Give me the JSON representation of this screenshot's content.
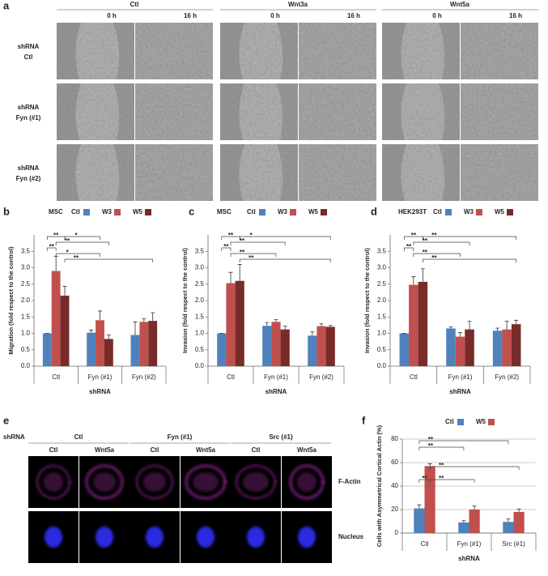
{
  "panel_labels": [
    "a",
    "b",
    "c",
    "d",
    "e",
    "f"
  ],
  "panel_a": {
    "groups": [
      "Ctl",
      "Wnt3a",
      "Wnt5a"
    ],
    "times": [
      "0 h",
      "16 h"
    ],
    "rows": [
      [
        "shRNA",
        "Ctl"
      ],
      [
        "shRNA",
        "Fyn (#1)"
      ],
      [
        "shRNA",
        "Fyn (#2)"
      ]
    ]
  },
  "panel_e": {
    "row_header": "shRNA",
    "groups": [
      "Ctl",
      "Fyn (#1)",
      "Src (#1)"
    ],
    "conditions": [
      "Ctl",
      "Wnt5a"
    ],
    "channels": [
      "F-Actin",
      "Nucleus"
    ]
  },
  "chart_data": [
    {
      "type": "bar",
      "title": "MSC",
      "ylabel": "Migration (fold respect to the control)",
      "xlabel": "shRNA",
      "categories": [
        "Ctl",
        "Fyn (#1)",
        "Fyn (#2)"
      ],
      "series": [
        {
          "name": "Ctl",
          "color": "#4f81bd",
          "values": [
            1,
            1.02,
            0.95
          ],
          "errors": [
            0,
            0.08,
            0.4
          ]
        },
        {
          "name": "W3",
          "color": "#c0504d",
          "values": [
            2.9,
            1.4,
            1.35
          ],
          "errors": [
            0.45,
            0.28,
            0.1
          ]
        },
        {
          "name": "W5",
          "color": "#772c2a",
          "values": [
            2.15,
            0.83,
            1.38
          ],
          "errors": [
            0.28,
            0.12,
            0.25
          ]
        }
      ],
      "ylim": [
        0,
        4
      ],
      "yticks": [
        {
          "value": 0,
          "label": "0.0"
        },
        0.5,
        {
          "value": 1,
          "label": "1.0"
        },
        1.5,
        {
          "value": 2,
          "label": "2.0"
        },
        2.5,
        {
          "value": 3,
          "label": "3.0"
        },
        3.5
      ],
      "grid": false,
      "significance": [
        "**",
        "*",
        "**",
        "**",
        "*",
        "**"
      ]
    },
    {
      "type": "bar",
      "title": "MSC",
      "ylabel": "Invasion (fold respect to the control)",
      "xlabel": "shRNA",
      "categories": [
        "Ctl",
        "Fyn (#1)",
        "Fyn (#2)"
      ],
      "series": [
        {
          "name": "Ctl",
          "color": "#4f81bd",
          "values": [
            1,
            1.23,
            0.93
          ],
          "errors": [
            0,
            0.1,
            0.12
          ]
        },
        {
          "name": "W3",
          "color": "#c0504d",
          "values": [
            2.53,
            1.35,
            1.22
          ],
          "errors": [
            0.33,
            0.07,
            0.07
          ]
        },
        {
          "name": "W5",
          "color": "#772c2a",
          "values": [
            2.6,
            1.12,
            1.2
          ],
          "errors": [
            0.5,
            0.1,
            0.04
          ]
        }
      ],
      "ylim": [
        0,
        4
      ],
      "yticks": [
        {
          "value": 0,
          "label": "0.0"
        },
        0.5,
        {
          "value": 1,
          "label": "1.0"
        },
        1.5,
        {
          "value": 2,
          "label": "2.0"
        },
        2.5,
        {
          "value": 3,
          "label": "3.0"
        },
        3.5
      ],
      "grid": false,
      "significance": [
        "**",
        "*",
        "**",
        "**",
        "**",
        "**"
      ]
    },
    {
      "type": "bar",
      "title": "HEK293T",
      "ylabel": "Invasion (fold respect to the control)",
      "xlabel": "shRNA",
      "categories": [
        "Ctl",
        "Fyn (#1)",
        "Fyn (#2)"
      ],
      "series": [
        {
          "name": "Ctl",
          "color": "#4f81bd",
          "values": [
            1,
            1.15,
            1.08
          ],
          "errors": [
            0,
            0.05,
            0.08
          ]
        },
        {
          "name": "W3",
          "color": "#c0504d",
          "values": [
            2.48,
            0.9,
            1.12
          ],
          "errors": [
            0.25,
            0.12,
            0.25
          ]
        },
        {
          "name": "W5",
          "color": "#772c2a",
          "values": [
            2.57,
            1.12,
            1.28
          ],
          "errors": [
            0.4,
            0.25,
            0.12
          ]
        }
      ],
      "ylim": [
        0,
        4
      ],
      "yticks": [
        {
          "value": 0,
          "label": "0.0"
        },
        0.5,
        {
          "value": 1,
          "label": "1.0"
        },
        1.5,
        {
          "value": 2,
          "label": "2.0"
        },
        2.5,
        {
          "value": 3,
          "label": "3.0"
        },
        3.5
      ],
      "grid": false,
      "significance": [
        "**",
        "**",
        "**",
        "**",
        "**",
        "**"
      ]
    },
    {
      "type": "bar",
      "ylabel": "Cells with Asymmetrical Cortical Actin (%)",
      "xlabel": "shRNA",
      "categories": [
        "Ctl",
        "Fyn (#1)",
        "Src (#1)"
      ],
      "series": [
        {
          "name": "Ctl",
          "color": "#4f81bd",
          "values": [
            21,
            9,
            9.5
          ],
          "errors": [
            3,
            1.5,
            2.5
          ]
        },
        {
          "name": "W5",
          "color": "#c0504d",
          "values": [
            57,
            20,
            18
          ],
          "errors": [
            2,
            3,
            2.5
          ]
        }
      ],
      "ylim": [
        0,
        80
      ],
      "yticks": [
        0,
        20,
        40,
        60,
        80
      ],
      "grid": true,
      "significance": [
        "**",
        "**",
        "**",
        "**",
        "**"
      ]
    }
  ]
}
